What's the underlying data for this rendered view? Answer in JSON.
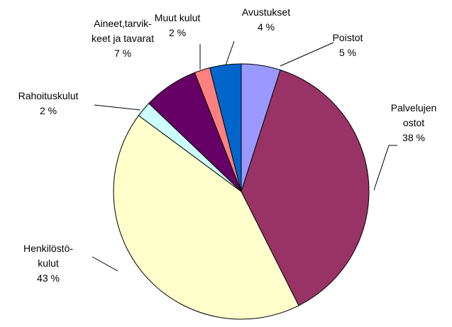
{
  "chart_data": {
    "type": "pie",
    "categories": [
      "Poistot",
      "Palvelujen\nostot",
      "Henkilöstö-\nkulut",
      "Rahoituskulut",
      "Aineet,tarvik-\nkeet ja tavarat",
      "Muut kulut",
      "Avustukset"
    ],
    "values": [
      5,
      38,
      43,
      2,
      7,
      2,
      4
    ],
    "value_labels": [
      "5 %",
      "38 %",
      "43 %",
      "2 %",
      "7 %",
      "2 %",
      "4 %"
    ],
    "colors": [
      "#9999ff",
      "#993366",
      "#ffffcc",
      "#ccffff",
      "#660066",
      "#ff8080",
      "#0066cc"
    ]
  }
}
